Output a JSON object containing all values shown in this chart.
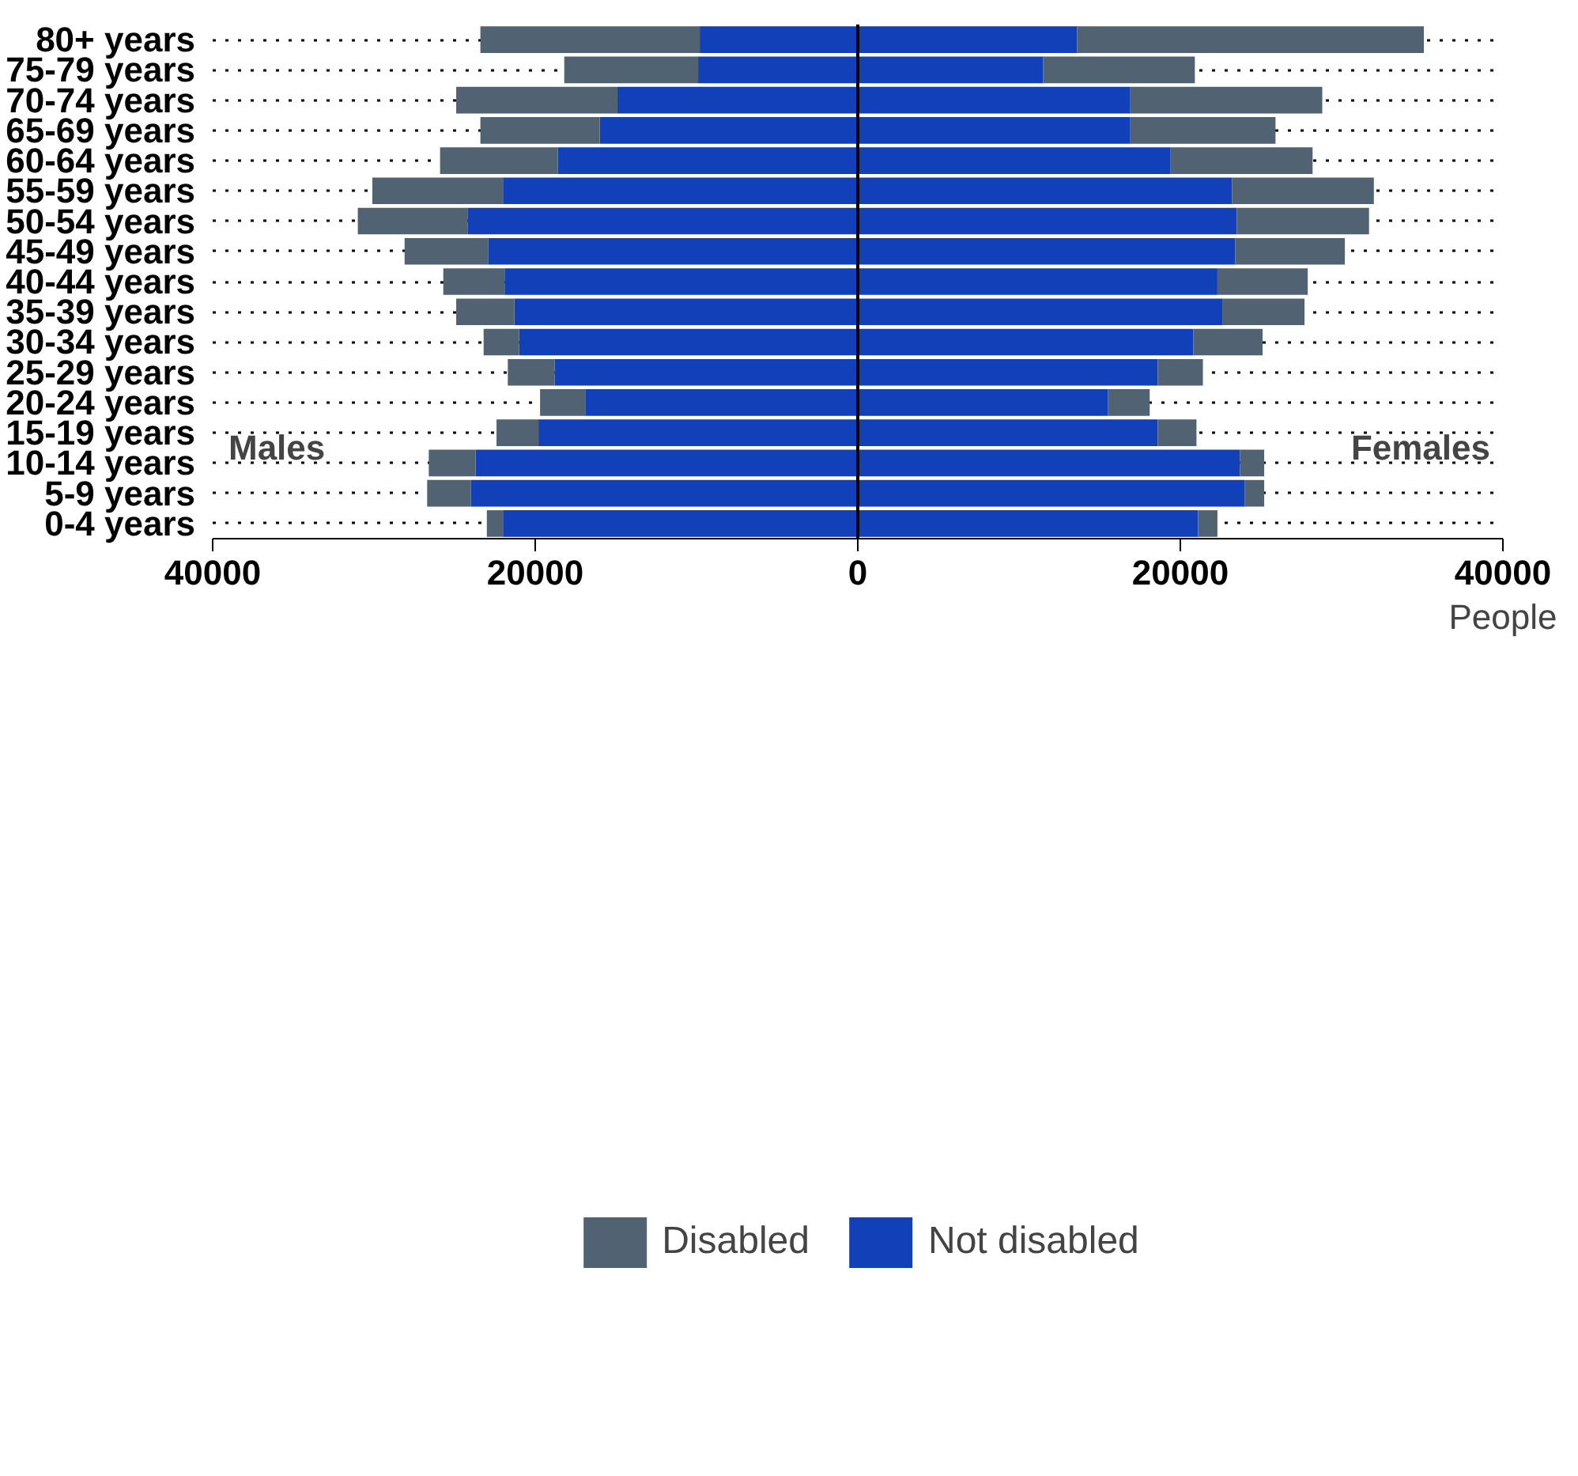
{
  "chart_data": {
    "type": "bar",
    "orientation": "horizontal",
    "stacked": true,
    "categories": [
      "80+ years",
      "75-79 years",
      "70-74 years",
      "65-69 years",
      "60-64 years",
      "55-59 years",
      "50-54 years",
      "45-49 years",
      "40-44 years",
      "35-39 years",
      "30-34 years",
      "25-29 years",
      "20-24 years",
      "15-19 years",
      "10-14 years",
      "5-9 years",
      "0-4 years"
    ],
    "series": [
      {
        "name": "Not disabled",
        "color": "#1140b8",
        "values": [
          13600,
          11500,
          16900,
          16900,
          19400,
          23200,
          23500,
          23400,
          22300,
          22600,
          20800,
          18600,
          15500,
          18600,
          23700,
          24000,
          21100
        ]
      },
      {
        "name": "Disabled",
        "color": "#516372",
        "values": [
          21500,
          9400,
          11900,
          9000,
          8800,
          8800,
          8200,
          6800,
          5600,
          5100,
          4300,
          2800,
          2600,
          2400,
          1500,
          1200,
          1200
        ]
      },
      {
        "color": "#1140b8",
        "values": [
          -9800,
          -9900,
          -14900,
          -16000,
          -18600,
          -22000,
          -24200,
          -22900,
          -21900,
          -21300,
          -21000,
          -18800,
          -16900,
          -19800,
          -23700,
          -24000,
          -22000
        ]
      },
      {
        "color": "#516372",
        "values": [
          -13600,
          -8300,
          -10000,
          -7400,
          -7300,
          -8100,
          -6800,
          -5200,
          -3800,
          -3600,
          -2200,
          -2900,
          -2800,
          -2600,
          -2900,
          -2700,
          -1000
        ]
      }
    ],
    "xlim": [
      -40000,
      40000
    ],
    "xticks": [
      {
        "value": -40000,
        "label": "40000"
      },
      {
        "value": -20000,
        "label": "20000"
      },
      0,
      20000,
      40000
    ],
    "xlabel": "People",
    "annotations": [
      "Males",
      "Females"
    ],
    "ref_lines": [
      {
        "axis": "x",
        "value": 0,
        "color": "#000000"
      }
    ],
    "grid": "y",
    "line_style": "dotted",
    "legend": "bottom"
  }
}
